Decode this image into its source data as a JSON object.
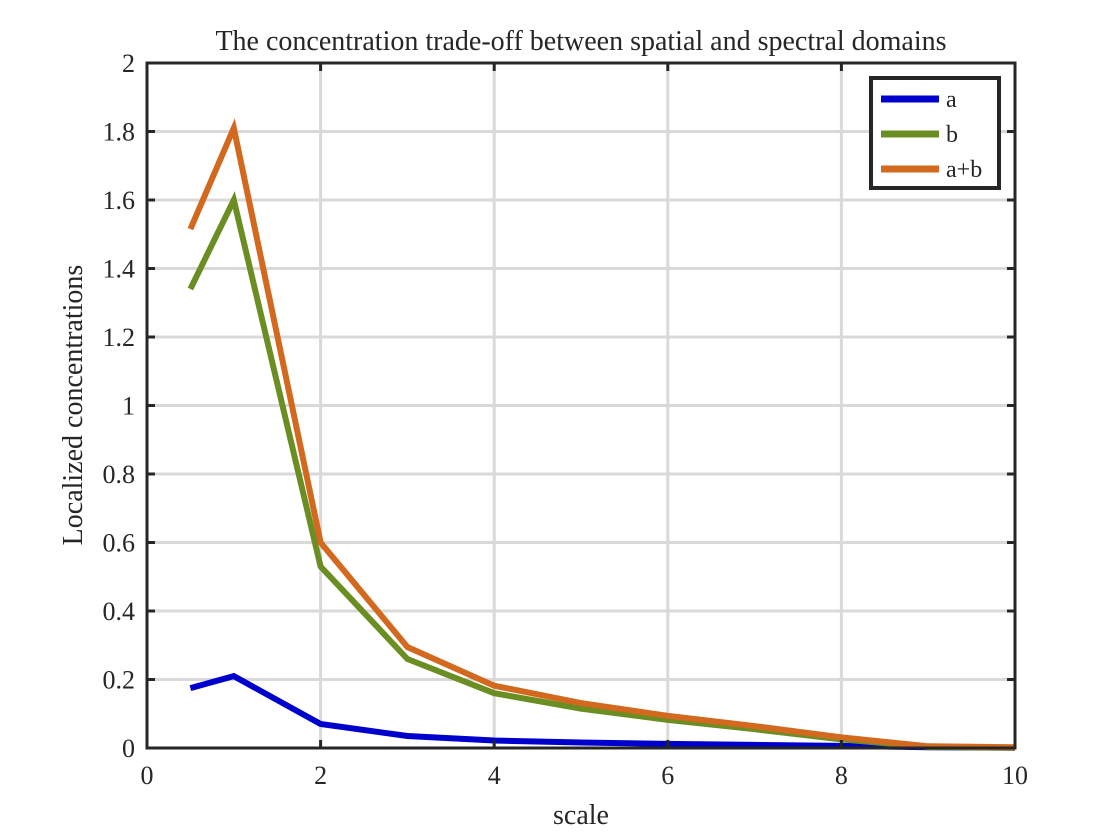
{
  "chart_data": {
    "type": "line",
    "title": "The concentration trade-off between spatial and spectral domains",
    "xlabel": "scale",
    "ylabel": "Localized concentrations",
    "xlim": [
      0,
      10
    ],
    "ylim": [
      0,
      2
    ],
    "xticks": [
      0,
      2,
      4,
      6,
      8,
      10
    ],
    "yticks": [
      0,
      0.2,
      0.4,
      0.6,
      0.8,
      1,
      1.2,
      1.4,
      1.6,
      1.8,
      2
    ],
    "xtick_labels": [
      "0",
      "2",
      "4",
      "6",
      "8",
      "10"
    ],
    "ytick_labels": [
      "0",
      "0.2",
      "0.4",
      "0.6",
      "0.8",
      "1",
      "1.2",
      "1.4",
      "1.6",
      "1.8",
      "2"
    ],
    "grid": true,
    "legend_position": "top-right",
    "x": [
      0.5,
      1,
      2,
      3,
      4,
      5,
      6,
      7,
      8,
      9,
      10
    ],
    "series": [
      {
        "name": "a",
        "color": "#0000cc",
        "values": [
          0.175,
          0.21,
          0.07,
          0.035,
          0.022,
          0.016,
          0.012,
          0.009,
          0.006,
          0.002,
          0.001
        ]
      },
      {
        "name": "b",
        "color": "#6b8e23",
        "values": [
          1.34,
          1.6,
          0.53,
          0.26,
          0.16,
          0.115,
          0.082,
          0.055,
          0.025,
          0.003,
          0.001
        ]
      },
      {
        "name": "a+b",
        "color": "#d2691e",
        "values": [
          1.515,
          1.81,
          0.6,
          0.295,
          0.182,
          0.131,
          0.094,
          0.064,
          0.031,
          0.005,
          0.002
        ]
      }
    ]
  }
}
